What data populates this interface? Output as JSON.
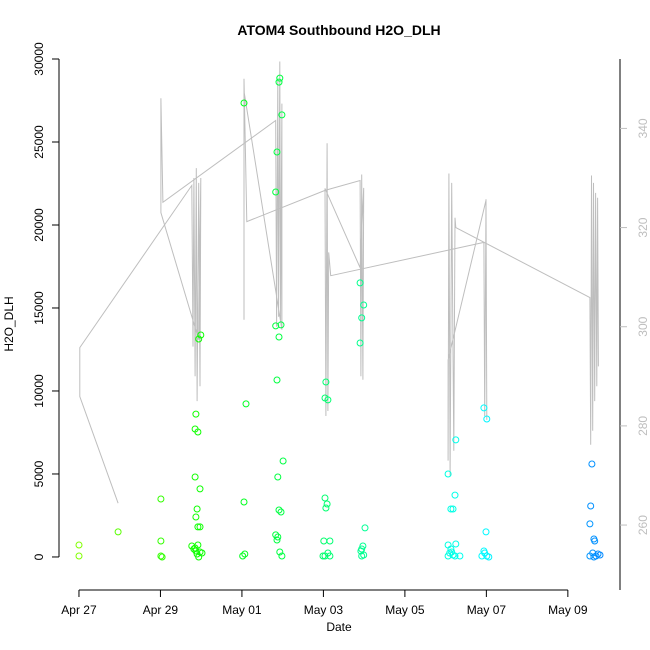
{
  "chart_data": {
    "type": "scatter",
    "title": "ATOM4 Southbound H2O_DLH",
    "xlabel": "Date",
    "ylabel": "H2O_DLH",
    "x_units": "days since Apr 27",
    "xlim": [
      -0.49,
      13.28
    ],
    "ylim": [
      -1990,
      30000
    ],
    "y2lim": [
      246.9,
      354.0
    ],
    "x_ticks": [
      0,
      2,
      4,
      6,
      8,
      10,
      12
    ],
    "x_tick_labels": [
      "Apr 27",
      "Apr 29",
      "May 01",
      "May 03",
      "May 05",
      "May 07",
      "May 09"
    ],
    "y_ticks": [
      0,
      5000,
      10000,
      15000,
      20000,
      25000,
      30000
    ],
    "y_tick_labels": [
      "0",
      "5000",
      "10000",
      "15000",
      "20000",
      "25000",
      "30000"
    ],
    "y2_ticks": [
      260,
      280,
      300,
      320,
      340
    ],
    "y2_tick_labels": [
      "260",
      "280",
      "300",
      "320",
      "340"
    ],
    "grid": false,
    "colors": {
      "secondary_line": "#bebebe",
      "axis": "#000000",
      "right_axis_text": "#bebebe"
    },
    "series": [
      {
        "name": "H2O_DLH",
        "axis": "left",
        "marker": "open-circle",
        "color_scale": "time (yellow-green to blue)",
        "points": [
          [
            0,
            720
          ],
          [
            0,
            60
          ],
          [
            0.96,
            1510
          ],
          [
            2.01,
            3490
          ],
          [
            2.01,
            960
          ],
          [
            2.01,
            60
          ],
          [
            2.04,
            0
          ],
          [
            2.85,
            7710
          ],
          [
            2.87,
            8610
          ],
          [
            2.92,
            7530
          ],
          [
            2.94,
            13130
          ],
          [
            2.99,
            13370
          ],
          [
            2.85,
            4820
          ],
          [
            2.97,
            4100
          ],
          [
            2.9,
            2890
          ],
          [
            2.87,
            2410
          ],
          [
            2.92,
            1810
          ],
          [
            2.97,
            1810
          ],
          [
            2.77,
            660
          ],
          [
            2.82,
            480
          ],
          [
            2.87,
            360
          ],
          [
            2.92,
            720
          ],
          [
            2.97,
            300
          ],
          [
            3.02,
            240
          ],
          [
            2.94,
            0
          ],
          [
            2.9,
            180
          ],
          [
            2.85,
            540
          ],
          [
            4.05,
            27350
          ],
          [
            4.1,
            9220
          ],
          [
            4.05,
            3310
          ],
          [
            4.07,
            180
          ],
          [
            4.02,
            60
          ],
          [
            4.93,
            28850
          ],
          [
            4.91,
            28610
          ],
          [
            4.98,
            26630
          ],
          [
            4.86,
            24400
          ],
          [
            4.83,
            21990
          ],
          [
            4.83,
            13920
          ],
          [
            4.91,
            13250
          ],
          [
            4.96,
            13980
          ],
          [
            4.86,
            10660
          ],
          [
            4.88,
            4820
          ],
          [
            5.01,
            5780
          ],
          [
            4.91,
            2830
          ],
          [
            4.96,
            2710
          ],
          [
            4.83,
            1330
          ],
          [
            4.88,
            1200
          ],
          [
            4.86,
            1020
          ],
          [
            4.93,
            300
          ],
          [
            4.98,
            60
          ],
          [
            6.06,
            10540
          ],
          [
            6.04,
            9580
          ],
          [
            6.11,
            9460
          ],
          [
            6.04,
            3550
          ],
          [
            6.09,
            3190
          ],
          [
            6.06,
            2950
          ],
          [
            6.01,
            960
          ],
          [
            6.16,
            960
          ],
          [
            6.11,
            240
          ],
          [
            6.04,
            60
          ],
          [
            6.16,
            60
          ],
          [
            5.99,
            60
          ],
          [
            6.9,
            16510
          ],
          [
            6.99,
            15180
          ],
          [
            6.94,
            14400
          ],
          [
            6.9,
            12890
          ],
          [
            7.02,
            1750
          ],
          [
            6.97,
            660
          ],
          [
            6.94,
            480
          ],
          [
            6.92,
            360
          ],
          [
            6.99,
            120
          ],
          [
            6.94,
            60
          ],
          [
            9.06,
            5000
          ],
          [
            9.23,
            3730
          ],
          [
            9.25,
            7050
          ],
          [
            9.13,
            2890
          ],
          [
            9.18,
            2890
          ],
          [
            9.06,
            720
          ],
          [
            9.25,
            780
          ],
          [
            9.13,
            480
          ],
          [
            9.1,
            240
          ],
          [
            9.18,
            120
          ],
          [
            9.23,
            60
          ],
          [
            9.06,
            60
          ],
          [
            9.35,
            60
          ],
          [
            9.15,
            300
          ],
          [
            9.94,
            8980
          ],
          [
            10.01,
            8310
          ],
          [
            9.99,
            1510
          ],
          [
            9.94,
            360
          ],
          [
            9.96,
            240
          ],
          [
            10.01,
            60
          ],
          [
            9.89,
            60
          ],
          [
            10.06,
            0
          ],
          [
            12.59,
            5600
          ],
          [
            12.56,
            3070
          ],
          [
            12.54,
            1990
          ],
          [
            12.64,
            1080
          ],
          [
            12.66,
            960
          ],
          [
            12.61,
            240
          ],
          [
            12.69,
            60
          ],
          [
            12.74,
            180
          ],
          [
            12.54,
            60
          ],
          [
            12.64,
            0
          ],
          [
            12.79,
            120
          ]
        ]
      },
      {
        "name": "secondary (right axis)",
        "axis": "right",
        "type": "line",
        "points": [
          [
            0.96,
            264.4
          ],
          [
            0.02,
            285.9
          ],
          [
            0.02,
            295.8
          ],
          [
            2.77,
            328.5
          ],
          [
            2.8,
            296
          ],
          [
            2.82,
            330
          ],
          [
            2.85,
            290
          ],
          [
            2.88,
            332
          ],
          [
            2.9,
            285
          ],
          [
            2.94,
            329
          ],
          [
            2.97,
            288
          ],
          [
            2.99,
            330
          ],
          [
            2.94,
            297.4
          ],
          [
            2.01,
            323.0
          ],
          [
            2.01,
            346.1
          ],
          [
            2.06,
            325.1
          ],
          [
            4.83,
            341.6
          ],
          [
            4.85,
            300
          ],
          [
            4.88,
            350
          ],
          [
            4.9,
            302
          ],
          [
            4.93,
            353.5
          ],
          [
            4.95,
            301
          ],
          [
            4.98,
            345
          ],
          [
            4.98,
            299.4
          ],
          [
            4.05,
            347.5
          ],
          [
            4.05,
            301.4
          ],
          [
            4.05,
            350
          ],
          [
            4.12,
            321.2
          ],
          [
            6.04,
            327.5
          ],
          [
            6.9,
            329.5
          ],
          [
            6.92,
            290
          ],
          [
            6.94,
            330.7
          ],
          [
            6.97,
            289.3
          ],
          [
            6.99,
            328
          ],
          [
            6.9,
            311.9
          ],
          [
            6.04,
            327.9
          ],
          [
            6.06,
            282
          ],
          [
            6.09,
            337
          ],
          [
            6.11,
            283
          ],
          [
            6.13,
            315
          ],
          [
            6.18,
            310.3
          ],
          [
            9.94,
            317.0
          ],
          [
            9.96,
            282
          ],
          [
            9.99,
            325.7
          ],
          [
            10.01,
            281.2
          ],
          [
            9.99,
            325.5
          ],
          [
            9.06,
            293.3
          ],
          [
            9.06,
            273
          ],
          [
            9.08,
            330.9
          ],
          [
            9.11,
            270
          ],
          [
            9.15,
            329
          ],
          [
            9.2,
            275
          ],
          [
            9.23,
            322
          ],
          [
            9.25,
            320.0
          ],
          [
            12.54,
            305.9
          ],
          [
            12.56,
            276.2
          ],
          [
            12.58,
            330.5
          ],
          [
            12.61,
            279
          ],
          [
            12.63,
            329
          ],
          [
            12.66,
            285
          ],
          [
            12.68,
            327
          ],
          [
            12.71,
            288
          ],
          [
            12.73,
            326
          ],
          [
            12.75,
            292
          ]
        ]
      }
    ]
  }
}
